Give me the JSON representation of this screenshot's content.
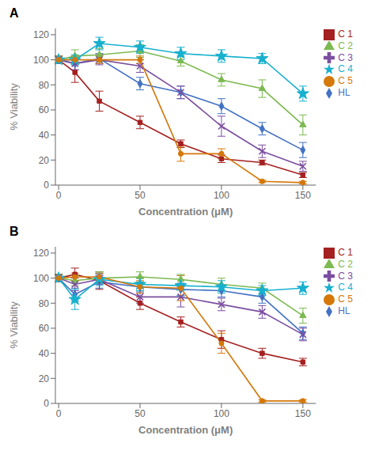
{
  "chart_data": [
    {
      "type": "line",
      "title": "A",
      "xlabel": "Concentration (μM)",
      "ylabel": "% Viability",
      "x": [
        0,
        10,
        25,
        50,
        75,
        100,
        125,
        150
      ],
      "xlim": [
        -2,
        158
      ],
      "xticks": [
        0,
        50,
        100,
        150
      ],
      "ylim": [
        0,
        125
      ],
      "yticks": [
        0,
        20,
        40,
        60,
        80,
        100,
        120
      ],
      "grid": false,
      "legend": "right",
      "series": [
        {
          "name": "HL",
          "color": "#4472C4",
          "marker": "diamond",
          "values": [
            100,
            97,
            101,
            81,
            74,
            63,
            45,
            28
          ],
          "errors": [
            3,
            5,
            4,
            5,
            5,
            6,
            5,
            6
          ]
        },
        {
          "name": "C 1",
          "color": "#A52020",
          "marker": "square",
          "values": [
            100,
            90,
            67,
            50,
            33,
            21,
            18,
            8
          ],
          "errors": [
            3,
            8,
            8,
            5,
            3,
            3,
            2,
            2
          ]
        },
        {
          "name": "C 2",
          "color": "#7CB950",
          "marker": "triangle",
          "values": [
            100,
            103,
            104,
            107,
            99,
            84,
            77,
            48
          ],
          "errors": [
            3,
            5,
            5,
            5,
            4,
            5,
            7,
            8
          ]
        },
        {
          "name": "C 3",
          "color": "#7B4EA0",
          "marker": "x",
          "values": [
            100,
            97,
            100,
            95,
            74,
            47,
            27,
            15
          ],
          "errors": [
            3,
            5,
            4,
            5,
            5,
            8,
            5,
            4
          ]
        },
        {
          "name": "C 4",
          "color": "#17B0CE",
          "marker": "star",
          "values": [
            100,
            100,
            113,
            110,
            105,
            103,
            101,
            73
          ],
          "errors": [
            3,
            4,
            5,
            5,
            5,
            5,
            4,
            6
          ]
        },
        {
          "name": "C 5",
          "color": "#D4780A",
          "marker": "circle",
          "values": [
            100,
            100,
            100,
            100,
            25,
            25,
            3,
            2
          ],
          "errors": [
            3,
            3,
            3,
            3,
            6,
            4,
            1,
            1
          ]
        }
      ]
    },
    {
      "type": "line",
      "title": "B",
      "xlabel": "Concentration (μM)",
      "ylabel": "% Viability",
      "x": [
        0,
        10,
        25,
        50,
        75,
        100,
        125,
        150
      ],
      "xlim": [
        -2,
        158
      ],
      "xticks": [
        0,
        50,
        100,
        150
      ],
      "ylim": [
        0,
        125
      ],
      "yticks": [
        0,
        20,
        40,
        60,
        80,
        100,
        120
      ],
      "grid": false,
      "legend": "right",
      "series": [
        {
          "name": "HL",
          "color": "#4472C4",
          "marker": "diamond",
          "values": [
            100,
            87,
            97,
            93,
            91,
            90,
            85,
            56
          ],
          "errors": [
            3,
            5,
            5,
            4,
            5,
            5,
            5,
            5
          ]
        },
        {
          "name": "C 1",
          "color": "#A52020",
          "marker": "square",
          "values": [
            100,
            103,
            98,
            80,
            65,
            51,
            40,
            33
          ],
          "errors": [
            3,
            5,
            7,
            5,
            4,
            7,
            4,
            3
          ]
        },
        {
          "name": "C 2",
          "color": "#7CB950",
          "marker": "triangle",
          "values": [
            100,
            98,
            100,
            101,
            99,
            95,
            92,
            70
          ],
          "errors": [
            3,
            4,
            5,
            4,
            4,
            5,
            4,
            6
          ]
        },
        {
          "name": "C 3",
          "color": "#7B4EA0",
          "marker": "x",
          "values": [
            100,
            95,
            99,
            85,
            85,
            79,
            73,
            55
          ],
          "errors": [
            3,
            5,
            4,
            5,
            8,
            5,
            5,
            5
          ]
        },
        {
          "name": "C 4",
          "color": "#17B0CE",
          "marker": "star",
          "values": [
            100,
            83,
            99,
            95,
            94,
            93,
            90,
            92
          ],
          "errors": [
            3,
            8,
            5,
            5,
            8,
            5,
            4,
            5
          ]
        },
        {
          "name": "C 5",
          "color": "#D4780A",
          "marker": "circle",
          "values": [
            100,
            101,
            101,
            93,
            92,
            48,
            2,
            2
          ],
          "errors": [
            3,
            3,
            3,
            5,
            10,
            8,
            1,
            1
          ]
        }
      ]
    }
  ]
}
